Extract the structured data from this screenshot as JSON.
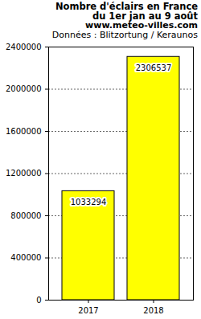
{
  "chart_data": {
    "type": "bar",
    "title": "Nombre d'éclairs en France du 1er jan au 9 août",
    "subtitle": [
      "www.meteo-villes.com",
      "Données : Blitzortung / Keraunos"
    ],
    "categories": [
      "2017",
      "2018"
    ],
    "values": [
      1033294,
      2306537
    ],
    "color": "#ffff00",
    "ylim": [
      0,
      2400000
    ],
    "yticks": [
      0,
      400000,
      800000,
      1200000,
      1600000,
      2000000,
      2400000
    ],
    "grid": true,
    "data_labels": true
  }
}
